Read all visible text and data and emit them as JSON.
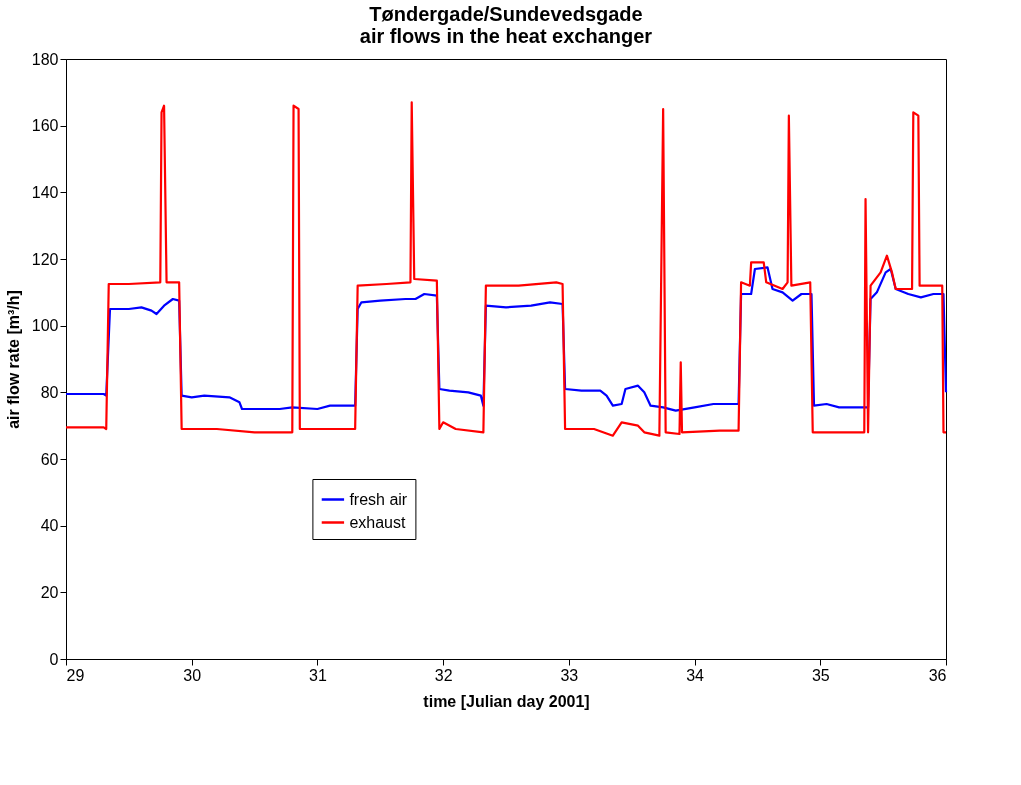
{
  "chart_data": {
    "type": "line",
    "title": [
      "Tøndergade/Sundevedsgade",
      "air flows in the heat exchanger"
    ],
    "xlabel": "time [Julian day 2001]",
    "ylabel": "air flow rate [m³/h]",
    "xlim": [
      29,
      36
    ],
    "xticks": [
      29,
      30,
      31,
      32,
      33,
      34,
      35,
      36
    ],
    "ylim": [
      0,
      180
    ],
    "yticks": [
      0,
      20,
      40,
      60,
      80,
      100,
      120,
      140,
      160,
      180
    ],
    "grid": false,
    "legend": "bottom left",
    "line_style": "solid",
    "marker": "none",
    "series": [
      {
        "name": "fresh air",
        "color": "#0000ff",
        "x": [
          29.0,
          29.3,
          29.32,
          29.35,
          29.5,
          29.6,
          29.68,
          29.72,
          29.78,
          29.85,
          29.9,
          29.92,
          30.0,
          30.1,
          30.3,
          30.38,
          30.4,
          30.5,
          30.7,
          30.8,
          31.0,
          31.1,
          31.3,
          31.32,
          31.35,
          31.5,
          31.7,
          31.78,
          31.85,
          31.95,
          31.97,
          32.05,
          32.2,
          32.3,
          32.32,
          32.34,
          32.5,
          32.7,
          32.85,
          32.95,
          32.97,
          33.1,
          33.25,
          33.3,
          33.35,
          33.42,
          33.45,
          33.55,
          33.6,
          33.65,
          33.75,
          33.85,
          34.0,
          34.15,
          34.35,
          34.37,
          34.45,
          34.48,
          34.58,
          34.62,
          34.7,
          34.78,
          34.85,
          34.93,
          34.95,
          35.05,
          35.15,
          35.38,
          35.4,
          35.45,
          35.52,
          35.56,
          35.6,
          35.7,
          35.8,
          35.9,
          35.98,
          36.0
        ],
        "values": [
          79.5,
          79.5,
          79,
          105,
          105,
          105.5,
          104.5,
          103.5,
          106,
          108,
          107.5,
          79,
          78.5,
          79,
          78.5,
          77,
          75,
          75,
          75,
          75.5,
          75,
          76,
          76,
          105,
          107,
          107.5,
          108,
          108,
          109.5,
          109,
          81,
          80.5,
          80,
          79,
          76,
          106,
          105.5,
          106,
          107,
          106.5,
          81,
          80.5,
          80.5,
          79,
          76,
          76.5,
          81,
          82,
          80,
          76,
          75.5,
          74.5,
          75.5,
          76.5,
          76.5,
          109.5,
          109.5,
          117,
          117.5,
          111,
          110,
          107.5,
          109.5,
          109.5,
          76,
          76.5,
          75.5,
          75.5,
          108,
          110,
          116,
          117,
          111,
          109.5,
          108.5,
          109.5,
          109.5,
          80
        ]
      },
      {
        "name": "exhaust",
        "color": "#ff0000",
        "x": [
          29.0,
          29.3,
          29.32,
          29.34,
          29.5,
          29.75,
          29.76,
          29.78,
          29.8,
          29.9,
          29.92,
          30.2,
          30.5,
          30.8,
          30.81,
          30.85,
          30.86,
          31.0,
          31.3,
          31.32,
          31.55,
          31.74,
          31.75,
          31.77,
          31.95,
          31.97,
          32.0,
          32.1,
          32.32,
          32.34,
          32.6,
          32.9,
          32.95,
          32.97,
          33.2,
          33.35,
          33.42,
          33.55,
          33.6,
          33.72,
          33.75,
          33.77,
          33.88,
          33.89,
          33.9,
          34.2,
          34.35,
          34.37,
          34.44,
          34.45,
          34.55,
          34.57,
          34.7,
          34.74,
          34.75,
          34.77,
          34.92,
          34.94,
          35.2,
          35.35,
          35.36,
          35.38,
          35.4,
          35.48,
          35.53,
          35.57,
          35.6,
          35.73,
          35.74,
          35.78,
          35.79,
          35.97,
          35.98,
          36.0
        ],
        "values": [
          69.5,
          69.5,
          69,
          112.5,
          112.5,
          113,
          164,
          166,
          113,
          113,
          69,
          69,
          68,
          68,
          166,
          165,
          69,
          69,
          69,
          112,
          112.5,
          113,
          167,
          114,
          113.5,
          69,
          71,
          69,
          68,
          112,
          112,
          113,
          112.5,
          69,
          69,
          67,
          71,
          70,
          68,
          67,
          165,
          68,
          67.5,
          89,
          68,
          68.5,
          68.5,
          113,
          112,
          119,
          119,
          113,
          111,
          113,
          163,
          112,
          113,
          68,
          68,
          68,
          138,
          68,
          112,
          116,
          121,
          116,
          111,
          111,
          164,
          163,
          112,
          112,
          68,
          68
        ]
      }
    ]
  }
}
